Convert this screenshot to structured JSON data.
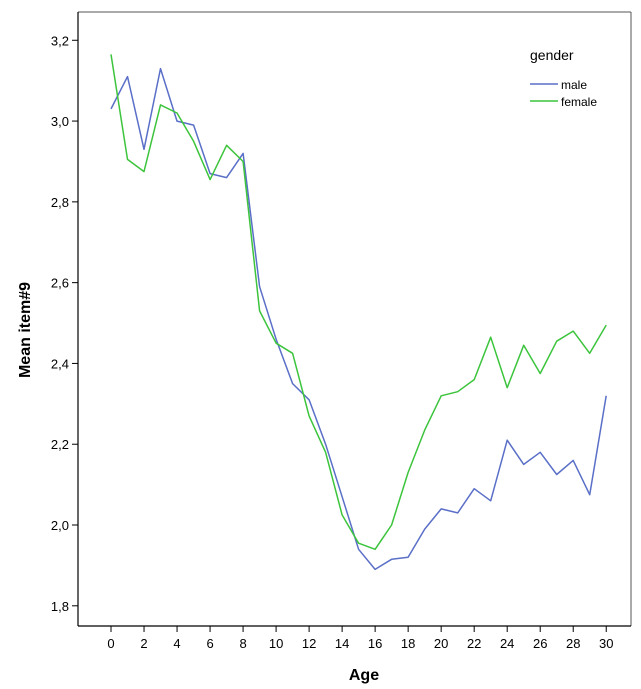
{
  "colors": {
    "male": "#5a6fc7",
    "female": "#3cc43c",
    "axis": "#000000",
    "frame": "#555555"
  },
  "chart_data": {
    "type": "line",
    "title": "",
    "xlabel": "Age",
    "ylabel": "Mean item#9",
    "xlim": [
      -2,
      31.5
    ],
    "ylim": [
      1.75,
      3.27
    ],
    "x_ticks": [
      0,
      2,
      4,
      6,
      8,
      10,
      12,
      14,
      16,
      18,
      20,
      22,
      24,
      26,
      28,
      30
    ],
    "y_ticks": [
      1.8,
      2.0,
      2.2,
      2.4,
      2.6,
      2.8,
      3.0,
      3.2
    ],
    "y_tick_labels": [
      "1,8",
      "2,0",
      "2,2",
      "2,4",
      "2,6",
      "2,8",
      "3,0",
      "3,2"
    ],
    "grid": false,
    "legend": {
      "title": "gender",
      "position": "top-right"
    },
    "x": [
      0,
      1,
      2,
      3,
      4,
      5,
      6,
      7,
      8,
      9,
      10,
      11,
      12,
      13,
      14,
      15,
      16,
      17,
      18,
      19,
      20,
      21,
      22,
      23,
      24,
      25,
      26,
      27,
      28,
      29,
      30
    ],
    "series": [
      {
        "name": "male",
        "values": [
          3.03,
          3.11,
          2.93,
          3.13,
          3.0,
          2.99,
          2.87,
          2.86,
          2.92,
          2.59,
          2.46,
          2.35,
          2.31,
          2.2,
          2.07,
          1.94,
          1.89,
          1.915,
          1.92,
          1.99,
          2.04,
          2.03,
          2.09,
          2.06,
          2.21,
          2.15,
          2.18,
          2.125,
          2.16,
          2.075,
          2.32
        ]
      },
      {
        "name": "female",
        "values": [
          3.165,
          2.905,
          2.875,
          3.04,
          3.02,
          2.95,
          2.855,
          2.94,
          2.9,
          2.53,
          2.45,
          2.425,
          2.27,
          2.18,
          2.025,
          1.955,
          1.94,
          2.0,
          2.13,
          2.235,
          2.32,
          2.33,
          2.36,
          2.465,
          2.34,
          2.445,
          2.375,
          2.455,
          2.48,
          2.425,
          2.495
        ]
      }
    ]
  }
}
